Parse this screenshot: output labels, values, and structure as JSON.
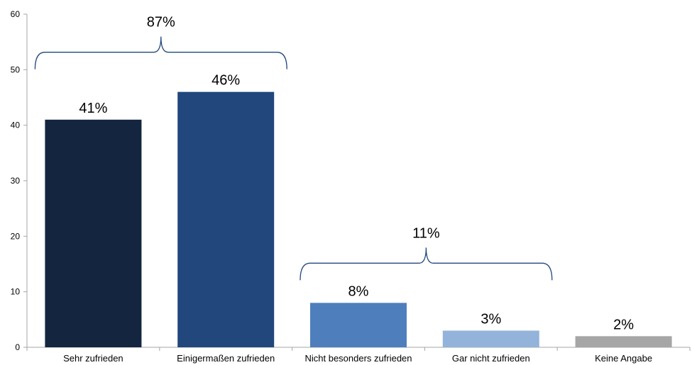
{
  "chart_data": {
    "type": "bar",
    "title": "",
    "xlabel": "",
    "ylabel": "",
    "ylim": [
      0,
      60
    ],
    "yticks": [
      0,
      10,
      20,
      30,
      40,
      50,
      60
    ],
    "grid": false,
    "categories": [
      "Sehr zufrieden",
      "Einigermaßen zufrieden",
      "Nicht besonders zufrieden",
      "Gar nicht zufrieden",
      "Keine Angabe"
    ],
    "values": [
      41,
      46,
      8,
      3,
      2
    ],
    "data_labels": [
      "41%",
      "46%",
      "8%",
      "3%",
      "2%"
    ],
    "colors": [
      "#14253f",
      "#21477c",
      "#4e7fbc",
      "#94b3db",
      "#a6a6a6"
    ],
    "groups": [
      {
        "label": "87%",
        "from": 0,
        "to": 1
      },
      {
        "label": "11%",
        "from": 2,
        "to": 3
      }
    ]
  }
}
